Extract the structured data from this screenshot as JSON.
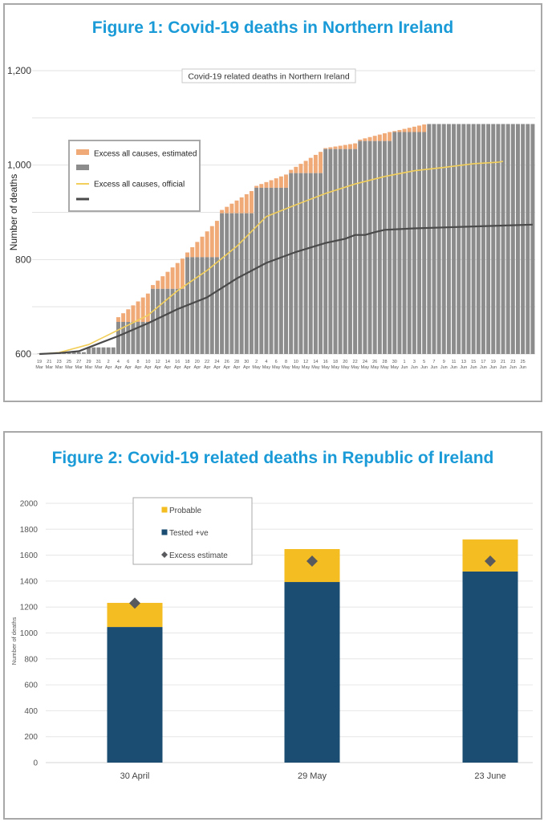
{
  "chart_data": [
    {
      "type": "bar",
      "title": "Figure 1: Covid-19 deaths in Northern Ireland",
      "subtitle": "Covid-19 related deaths in Northern Ireland",
      "xlabel": "",
      "ylabel": "Number of deaths",
      "ylim": [
        600,
        1200
      ],
      "yticks": [
        600,
        800,
        1000,
        1200
      ],
      "ytick_labels": [
        "600",
        "800",
        "1,000",
        "1,200"
      ],
      "grid_step": 100,
      "grid": true,
      "legend_position": "upper-left",
      "colors": {
        "estimated": "#f0aa78",
        "official_bar": "#8c8c8c",
        "official_line": "#f2cf5b",
        "covid_line": "#4a4a4a"
      },
      "legend": [
        {
          "label": "Excess all causes, estimated",
          "kind": "swatch",
          "color": "#f0aa78"
        },
        {
          "label": "",
          "kind": "swatch",
          "color": "#8c8c8c"
        },
        {
          "label": "Excess all causes, official",
          "kind": "line",
          "color": "#f2cf5b"
        },
        {
          "label": "",
          "kind": "line",
          "color": "#4a4a4a"
        }
      ],
      "x_tick_labels": [
        [
          "19",
          "Mar"
        ],
        [
          "21",
          "Mar"
        ],
        [
          "23",
          "Mar"
        ],
        [
          "25",
          "Mar"
        ],
        [
          "27",
          "Mar"
        ],
        [
          "29",
          "Mar"
        ],
        [
          "31",
          "Mar"
        ],
        [
          "2",
          "Apr"
        ],
        [
          "4",
          "Apr"
        ],
        [
          "6",
          "Apr"
        ],
        [
          "8",
          "Apr"
        ],
        [
          "10",
          "Apr"
        ],
        [
          "12",
          "Apr"
        ],
        [
          "14",
          "Apr"
        ],
        [
          "16",
          "Apr"
        ],
        [
          "18",
          "Apr"
        ],
        [
          "20",
          "Apr"
        ],
        [
          "22",
          "Apr"
        ],
        [
          "24",
          "Apr"
        ],
        [
          "26",
          "Apr"
        ],
        [
          "28",
          "Apr"
        ],
        [
          "30",
          "Apr"
        ],
        [
          "2",
          "May"
        ],
        [
          "4",
          "May"
        ],
        [
          "6",
          "May"
        ],
        [
          "8",
          "May"
        ],
        [
          "10",
          "May"
        ],
        [
          "12",
          "May"
        ],
        [
          "14",
          "May"
        ],
        [
          "16",
          "May"
        ],
        [
          "18",
          "May"
        ],
        [
          "20",
          "May"
        ],
        [
          "22",
          "May"
        ],
        [
          "24",
          "May"
        ],
        [
          "26",
          "May"
        ],
        [
          "28",
          "May"
        ],
        [
          "30",
          "May"
        ],
        [
          "1",
          "Jun"
        ],
        [
          "3",
          "Jun"
        ],
        [
          "5",
          "Jun"
        ],
        [
          "7",
          "Jun"
        ],
        [
          "9",
          "Jun"
        ],
        [
          "11",
          "Jun"
        ],
        [
          "13",
          "Jun"
        ],
        [
          "15",
          "Jun"
        ],
        [
          "17",
          "Jun"
        ],
        [
          "19",
          "Jun"
        ],
        [
          "21",
          "Jun"
        ],
        [
          "23",
          "Jun"
        ],
        [
          "25",
          "Jun"
        ]
      ],
      "days_count": 101,
      "series": [
        {
          "name": "Excess all causes, official (bars)",
          "steps": [
            {
              "from_day": 0,
              "value": 601
            },
            {
              "from_day": 3,
              "value": 602
            },
            {
              "from_day": 6,
              "value": 604
            },
            {
              "from_day": 10,
              "value": 614
            },
            {
              "from_day": 16,
              "value": 668
            },
            {
              "from_day": 23,
              "value": 738
            },
            {
              "from_day": 30,
              "value": 805
            },
            {
              "from_day": 37,
              "value": 898
            },
            {
              "from_day": 44,
              "value": 952
            },
            {
              "from_day": 51,
              "value": 983
            },
            {
              "from_day": 58,
              "value": 1034
            },
            {
              "from_day": 65,
              "value": 1051
            },
            {
              "from_day": 72,
              "value": 1070
            },
            {
              "from_day": 79,
              "value": 1087
            }
          ]
        },
        {
          "name": "Excess all causes, estimated (bar tops)",
          "weekly_ranges": [
            {
              "from_day": 16,
              "to_day": 22,
              "start": 678,
              "end": 728
            },
            {
              "from_day": 23,
              "to_day": 29,
              "start": 746,
              "end": 802
            },
            {
              "from_day": 30,
              "to_day": 36,
              "start": 815,
              "end": 882
            },
            {
              "from_day": 37,
              "to_day": 43,
              "start": 905,
              "end": 945
            },
            {
              "from_day": 44,
              "to_day": 50,
              "start": 956,
              "end": 980
            },
            {
              "from_day": 51,
              "to_day": 57,
              "start": 990,
              "end": 1028
            },
            {
              "from_day": 58,
              "to_day": 64,
              "start": 1036,
              "end": 1046
            },
            {
              "from_day": 65,
              "to_day": 71,
              "start": 1054,
              "end": 1070
            },
            {
              "from_day": 72,
              "to_day": 78,
              "start": 1072,
              "end": 1086
            }
          ]
        },
        {
          "name": "Excess all causes, official",
          "points": [
            [
              0,
              600
            ],
            [
              4,
              603
            ],
            [
              10,
              620
            ],
            [
              16,
              651
            ],
            [
              22,
              682
            ],
            [
              28,
              734
            ],
            [
              34,
              777
            ],
            [
              40,
              828
            ],
            [
              46,
              891
            ],
            [
              52,
              916
            ],
            [
              58,
              940
            ],
            [
              64,
              960
            ],
            [
              70,
              976
            ],
            [
              76,
              988
            ],
            [
              82,
              995
            ],
            [
              88,
              1003
            ],
            [
              93,
              1006
            ],
            [
              94,
              1008
            ]
          ]
        },
        {
          "name": "Covid-19 related deaths",
          "points": [
            [
              0,
              600
            ],
            [
              4,
              602
            ],
            [
              8,
              606
            ],
            [
              10,
              614
            ],
            [
              16,
              638
            ],
            [
              22,
              665
            ],
            [
              28,
              695
            ],
            [
              34,
              720
            ],
            [
              40,
              760
            ],
            [
              46,
              793
            ],
            [
              52,
              816
            ],
            [
              58,
              835
            ],
            [
              62,
              844
            ],
            [
              64,
              852
            ],
            [
              66,
              852
            ],
            [
              68,
              858
            ],
            [
              70,
              863
            ],
            [
              76,
              866
            ],
            [
              82,
              868
            ],
            [
              88,
              870
            ],
            [
              94,
              872
            ],
            [
              100,
              874
            ]
          ]
        }
      ]
    },
    {
      "type": "bar",
      "stacked": true,
      "title": "Figure 2: Covid-19 related deaths in Republic of Ireland",
      "xlabel": "",
      "ylabel": "Number of deaths",
      "ylim": [
        0,
        2000
      ],
      "yticks": [
        0,
        200,
        400,
        600,
        800,
        1000,
        1200,
        1400,
        1600,
        1800,
        2000
      ],
      "grid": true,
      "legend_position": "top-center",
      "categories": [
        "30 April",
        "29 May",
        "23 June"
      ],
      "series": [
        {
          "name": "Tested +ve",
          "color": "#1b4d72",
          "values": [
            1046,
            1393,
            1474
          ]
        },
        {
          "name": "Probable",
          "color": "#f4bd21",
          "values": [
            186,
            254,
            247
          ]
        },
        {
          "name": "Excess estimate",
          "color": "#595a5e",
          "marker": "diamond",
          "values": [
            1230,
            1554,
            1554
          ]
        }
      ],
      "legend": [
        {
          "label": "Probable",
          "kind": "square",
          "color": "#f4bd21"
        },
        {
          "label": "Tested +ve",
          "kind": "square",
          "color": "#1b4d72"
        },
        {
          "label": "Excess estimate",
          "kind": "diamond",
          "color": "#595a5e"
        }
      ]
    }
  ]
}
